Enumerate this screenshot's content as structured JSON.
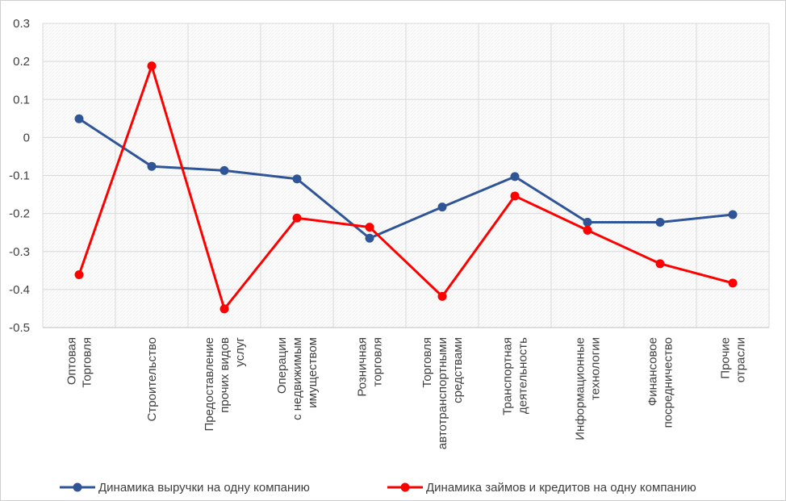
{
  "chart_data": {
    "type": "line",
    "title": "",
    "xlabel": "",
    "ylabel": "",
    "ylim": [
      -0.5,
      0.3
    ],
    "yticks": [
      0.3,
      0.2,
      0.1,
      0,
      -0.1,
      -0.2,
      -0.3,
      -0.4,
      -0.5
    ],
    "ytick_labels": [
      "0.3",
      "0.2",
      "0.1",
      "0",
      "-0.1",
      "-0.2",
      "-0.3",
      "-0.4",
      "-0.5"
    ],
    "grid": true,
    "legend_position": "bottom",
    "categories": [
      [
        "Оптовая",
        "Торговля"
      ],
      [
        "Строительство"
      ],
      [
        "Предоставление",
        "прочих видов",
        "услуг"
      ],
      [
        "Операции",
        "с недвижимым",
        "имуществом"
      ],
      [
        "Розничная",
        "торговля"
      ],
      [
        "Торговля",
        "автотранспортными",
        "средствами"
      ],
      [
        "Транспортная",
        "деятельность"
      ],
      [
        "Информационные",
        "технологии"
      ],
      [
        "Финансовое",
        "посредничество"
      ],
      [
        "Прочие",
        "отрасли"
      ]
    ],
    "series": [
      {
        "name": "Динамика выручки на одну компанию",
        "color": "#2f5597",
        "values": [
          0.049,
          -0.076,
          -0.087,
          -0.109,
          -0.265,
          -0.183,
          -0.103,
          -0.223,
          -0.223,
          -0.203
        ]
      },
      {
        "name": "Динамика займов и кредитов на одну компанию",
        "color": "#ff0000",
        "values": [
          -0.361,
          0.188,
          -0.451,
          -0.212,
          -0.236,
          -0.418,
          -0.154,
          -0.244,
          -0.332,
          -0.383
        ]
      }
    ]
  }
}
